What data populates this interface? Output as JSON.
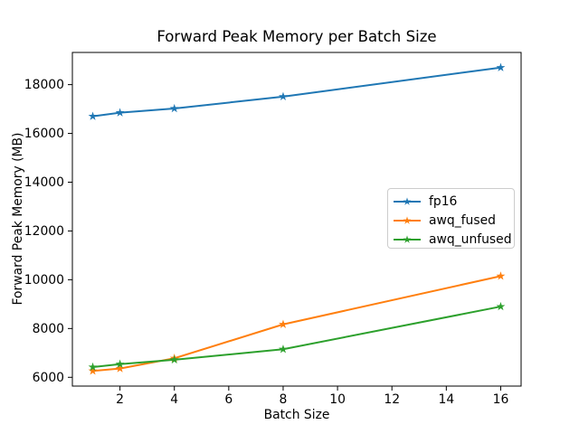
{
  "figure": {
    "background": "#ffffff",
    "text_color": "#000000",
    "spine_color": "#000000",
    "legend_border_color": "#cccccc"
  },
  "chart_data": {
    "type": "line",
    "title": "Forward Peak Memory per Batch Size",
    "xlabel": "Batch Size",
    "ylabel": "Forward Peak Memory (MB)",
    "x": [
      1,
      2,
      4,
      8,
      16
    ],
    "series": [
      {
        "name": "fp16",
        "color": "#1f77b4",
        "marker": "star",
        "values": [
          16700,
          16850,
          17020,
          17510,
          18700
        ]
      },
      {
        "name": "awq_fused",
        "color": "#ff7f0e",
        "marker": "star",
        "values": [
          6260,
          6360,
          6780,
          8170,
          10150
        ]
      },
      {
        "name": "awq_unfused",
        "color": "#2ca02c",
        "marker": "star",
        "values": [
          6420,
          6540,
          6720,
          7150,
          8900
        ]
      }
    ],
    "xlim": [
      0.25,
      16.75
    ],
    "ylim": [
      5640,
      19320
    ],
    "xticks": [
      2,
      4,
      6,
      8,
      10,
      12,
      14,
      16
    ],
    "yticks": [
      6000,
      8000,
      10000,
      12000,
      14000,
      16000,
      18000
    ],
    "grid": false,
    "legend_position": "center-right"
  }
}
